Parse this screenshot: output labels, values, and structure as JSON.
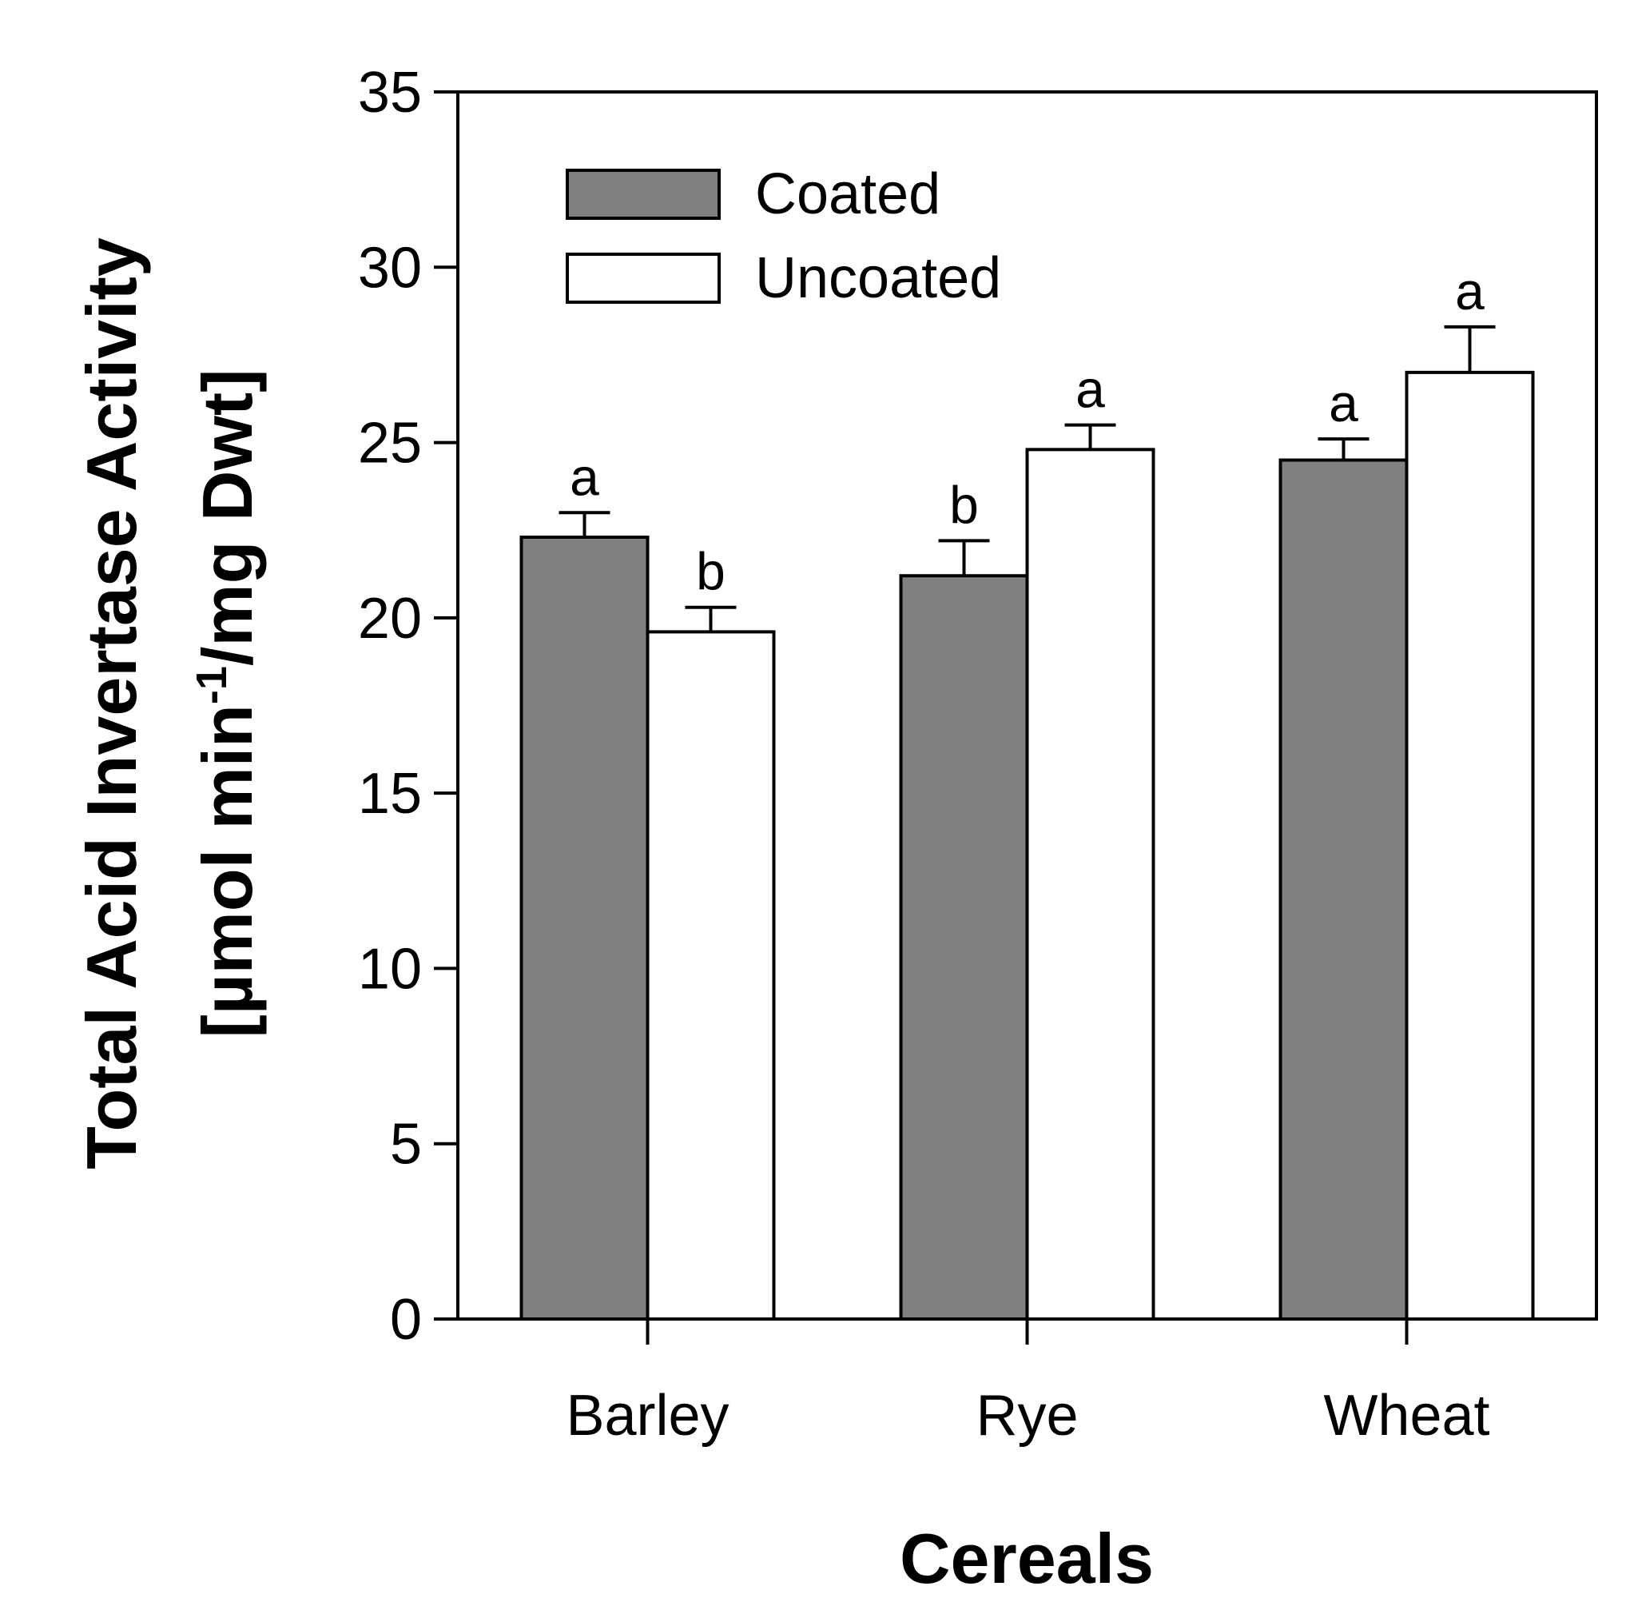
{
  "chart_data": {
    "type": "bar",
    "title": "",
    "xlabel": "Cereals",
    "ylabel_line1": "Total Acid Invertase Activity",
    "ylabel_line2_pre": "[µmol min",
    "ylabel_line2_sup": "-1",
    "ylabel_line2_post": "/mg Dwt]",
    "categories": [
      "Barley",
      "Rye",
      "Wheat"
    ],
    "ylim": [
      0,
      35
    ],
    "yticks": [
      "0",
      "5",
      "10",
      "15",
      "20",
      "25",
      "30",
      "35"
    ],
    "series": [
      {
        "name": "Coated",
        "color": "#808080",
        "values": [
          22.3,
          21.2,
          24.5
        ],
        "errors": [
          0.7,
          1.0,
          0.6
        ],
        "sig_letters": [
          "a",
          "b",
          "a"
        ]
      },
      {
        "name": "Uncoated",
        "color": "#ffffff",
        "values": [
          19.6,
          24.8,
          27.0
        ],
        "errors": [
          0.7,
          0.7,
          1.3
        ],
        "sig_letters": [
          "b",
          "a",
          "a"
        ]
      }
    ],
    "legend_position": "top-left",
    "grid": false
  }
}
